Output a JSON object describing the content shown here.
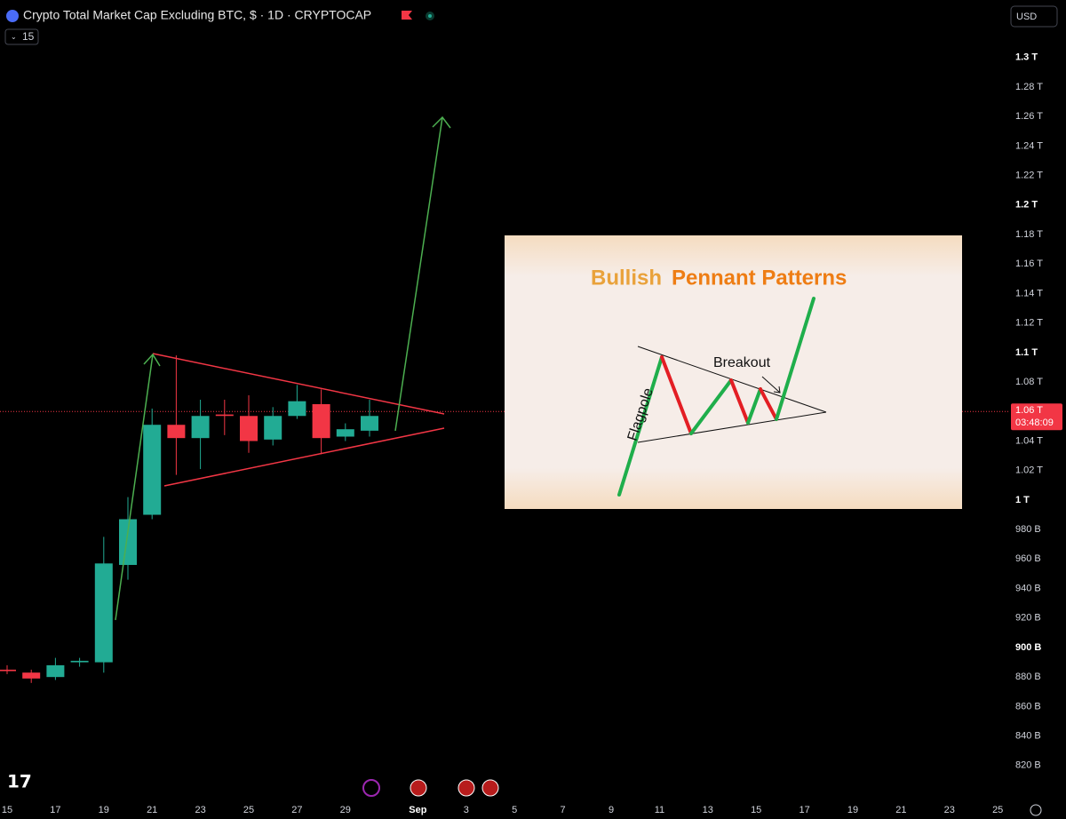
{
  "chart_data": {
    "type": "candlestick",
    "title": "Crypto Total Market Cap Excluding BTC, $ · 1D · CRYPTOCAP",
    "categories": [
      "15",
      null,
      "17",
      null,
      "19",
      null,
      "21",
      null,
      "23",
      null,
      "25",
      null,
      "27",
      null,
      "29",
      null,
      null,
      "Sep",
      null,
      "3",
      null,
      "5",
      null,
      "7",
      null,
      "9",
      null,
      "11",
      null,
      "13",
      null,
      "15",
      null,
      "17",
      null,
      "19",
      null,
      "21",
      null,
      "23",
      null,
      "25"
    ],
    "open": [
      885,
      883,
      880,
      890,
      890,
      956,
      990,
      1051,
      1042,
      1058,
      1057,
      1041,
      1057,
      1065,
      1043,
      1047,
      null,
      null,
      null,
      null,
      null,
      null,
      null,
      null,
      null,
      null,
      null,
      null,
      null,
      null,
      null,
      null,
      null,
      null,
      null,
      null,
      null,
      null,
      null,
      null,
      null,
      null
    ],
    "high": [
      888,
      885,
      893,
      893,
      975,
      1002,
      1062,
      1098,
      1068,
      1068,
      1071,
      1063,
      1078,
      1075,
      1052,
      1068,
      null,
      null,
      null,
      null,
      null,
      null,
      null,
      null,
      null,
      null,
      null,
      null,
      null,
      null,
      null,
      null,
      null,
      null,
      null,
      null,
      null,
      null,
      null,
      null,
      null,
      null
    ],
    "low": [
      882,
      876,
      878,
      887,
      883,
      946,
      987,
      1017,
      1021,
      1044,
      1032,
      1037,
      1055,
      1031,
      1040,
      1043,
      null,
      null,
      null,
      null,
      null,
      null,
      null,
      null,
      null,
      null,
      null,
      null,
      null,
      null,
      null,
      null,
      null,
      null,
      null,
      null,
      null,
      null,
      null,
      null,
      null,
      null
    ],
    "close": [
      884,
      879,
      888,
      891,
      957,
      987,
      1051,
      1042,
      1057,
      1057,
      1040,
      1057,
      1067,
      1042,
      1048,
      1057,
      null,
      null,
      null,
      null,
      null,
      null,
      null,
      null,
      null,
      null,
      null,
      null,
      null,
      null,
      null,
      null,
      null,
      null,
      null,
      null,
      null,
      null,
      null,
      null,
      null,
      null
    ],
    "up_color": "#22ab94",
    "down_color": "#f23645",
    "ylim": [
      797,
      1339
    ],
    "yticks": [
      {
        "value": 1300,
        "label": "1.3 T"
      },
      {
        "value": 1280,
        "label": "1.28 T"
      },
      {
        "value": 1260,
        "label": "1.26 T"
      },
      {
        "value": 1240,
        "label": "1.24 T"
      },
      {
        "value": 1220,
        "label": "1.22 T"
      },
      {
        "value": 1200,
        "label": "1.2 T"
      },
      {
        "value": 1180,
        "label": "1.18 T"
      },
      {
        "value": 1160,
        "label": "1.16 T"
      },
      {
        "value": 1140,
        "label": "1.14 T"
      },
      {
        "value": 1120,
        "label": "1.12 T"
      },
      {
        "value": 1100,
        "label": "1.1 T"
      },
      {
        "value": 1080,
        "label": "1.08 T"
      },
      {
        "value": 1040,
        "label": "1.04 T"
      },
      {
        "value": 1020,
        "label": "1.02 T"
      },
      {
        "value": 1000,
        "label": "1 T"
      },
      {
        "value": 980,
        "label": "980 B"
      },
      {
        "value": 960,
        "label": "960 B"
      },
      {
        "value": 940,
        "label": "940 B"
      },
      {
        "value": 920,
        "label": "920 B"
      },
      {
        "value": 900,
        "label": "900 B"
      },
      {
        "value": 880,
        "label": "880 B"
      },
      {
        "value": 860,
        "label": "860 B"
      },
      {
        "value": 840,
        "label": "840 B"
      },
      {
        "value": 820,
        "label": "820 B"
      }
    ],
    "price_line": {
      "value": 1060,
      "label": "1.06 T",
      "countdown": "03:48:09"
    }
  },
  "toolbar": {
    "indicator": "15",
    "currency": "USD"
  },
  "inset": {
    "title_part1": "Bullish",
    "title_part2": "Pennant Patterns",
    "breakout": "Breakout",
    "flagpole": "Flagpole"
  }
}
